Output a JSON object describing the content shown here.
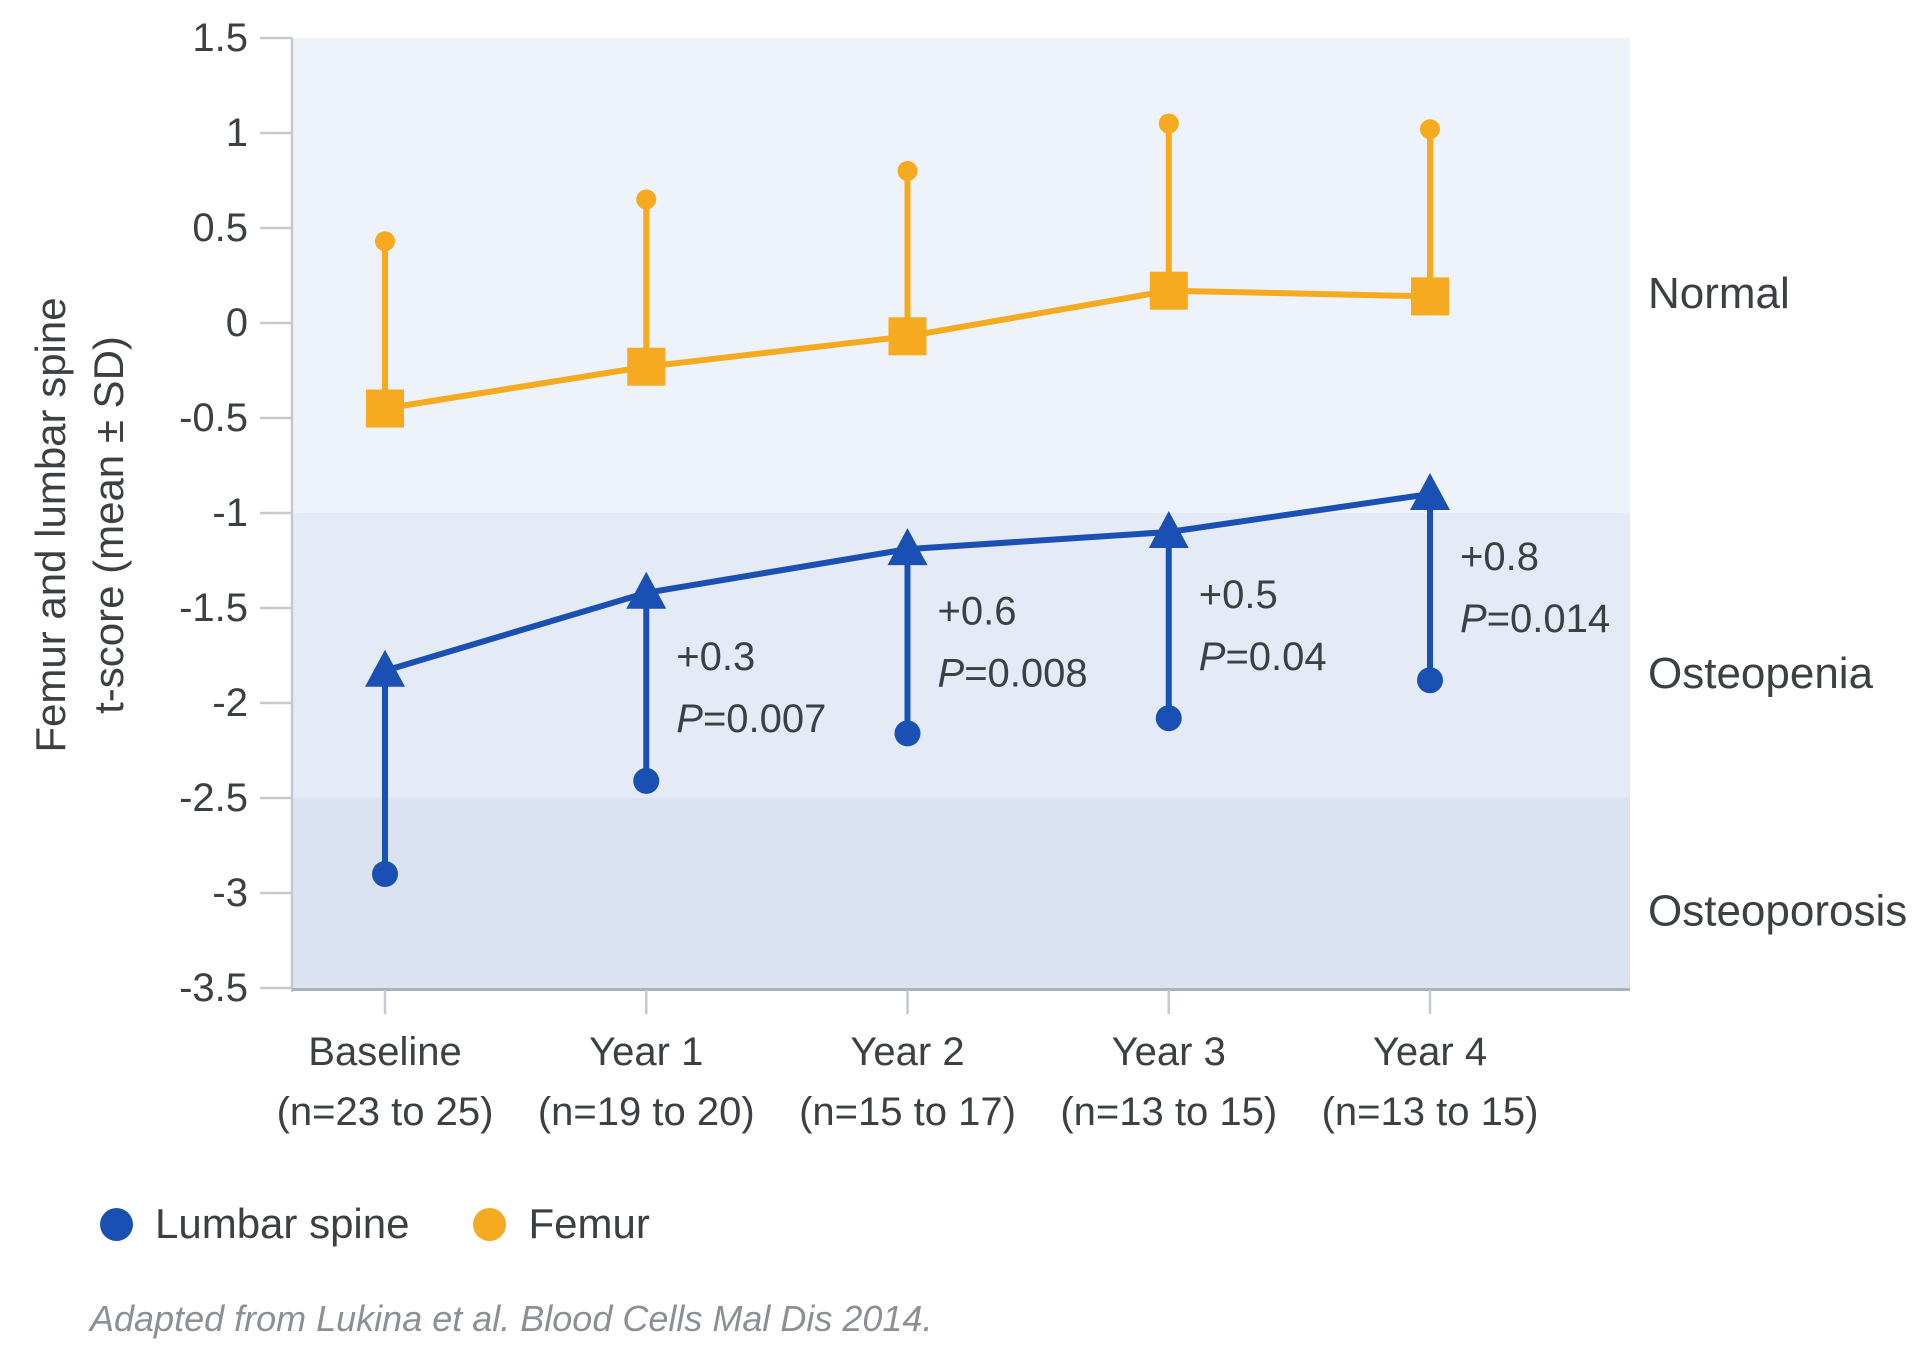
{
  "chart_data": {
    "type": "line",
    "ylabel_line1": "Femur and lumbar spine",
    "ylabel_line2": "t-score (mean ± SD)",
    "ylim": [
      -3.5,
      1.5
    ],
    "ytick_values": [
      1.5,
      1,
      0.5,
      0,
      -0.5,
      -1,
      -1.5,
      -2,
      -2.5,
      -3,
      -3.5
    ],
    "categories": [
      {
        "label": "Baseline",
        "sub": "(n=23 to 25)"
      },
      {
        "label": "Year 1",
        "sub": "(n=19 to 20)"
      },
      {
        "label": "Year 2",
        "sub": "(n=15 to 17)"
      },
      {
        "label": "Year 3",
        "sub": "(n=13 to 15)"
      },
      {
        "label": "Year 4",
        "sub": "(n=13 to 15)"
      }
    ],
    "zones": [
      {
        "label": "Normal",
        "from": 1.5,
        "to": -1,
        "color": "#EEF2FB"
      },
      {
        "label": "Osteopenia",
        "from": -1,
        "to": -2.5,
        "color": "#E4EAF6"
      },
      {
        "label": "Osteoporosis",
        "from": -2.5,
        "to": -3.5,
        "color": "#DBE3F2"
      }
    ],
    "series": [
      {
        "name": "Lumbar spine",
        "color": "#1A50B3",
        "marker": "triangle",
        "error_direction": "down",
        "means": [
          -1.83,
          -1.42,
          -1.19,
          -1.1,
          -0.9
        ],
        "error_ends": [
          -2.9,
          -2.41,
          -2.16,
          -2.08,
          -1.88
        ]
      },
      {
        "name": "Femur",
        "color": "#F5AA1F",
        "marker": "square",
        "error_direction": "up",
        "means": [
          -0.45,
          -0.23,
          -0.07,
          0.17,
          0.14
        ],
        "error_ends": [
          0.43,
          0.65,
          0.8,
          1.05,
          1.02
        ]
      }
    ],
    "annotations": [
      {
        "category_index": 1,
        "delta": "+0.3",
        "p_italic": "P",
        "p_rest": "=0.007"
      },
      {
        "category_index": 2,
        "delta": "+0.6",
        "p_italic": "P",
        "p_rest": "=0.008"
      },
      {
        "category_index": 3,
        "delta": "+0.5",
        "p_italic": "P",
        "p_rest": "=0.04"
      },
      {
        "category_index": 4,
        "delta": "+0.8",
        "p_italic": "P",
        "p_rest": "=0.014"
      }
    ],
    "legend": [
      {
        "label": "Lumbar spine",
        "color": "#1A50B3"
      },
      {
        "label": "Femur",
        "color": "#F5AA1F"
      }
    ],
    "footer": "Adapted from Lukina et al. Blood Cells Mal Dis 2014.",
    "grid": false,
    "legend_position": "bottom-left"
  }
}
